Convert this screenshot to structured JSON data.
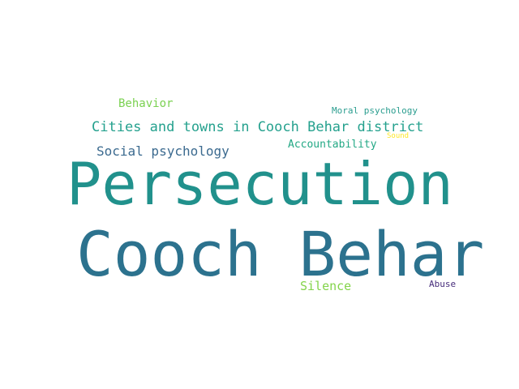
{
  "words": [
    {
      "id": "persecution",
      "text": "Persecution",
      "color": "#21918c"
    },
    {
      "id": "cooch_behar",
      "text": "Cooch Behar",
      "color": "#2c728e"
    },
    {
      "id": "cities",
      "text": "Cities and towns in Cooch Behar district",
      "color": "#25a18e"
    },
    {
      "id": "social",
      "text": "Social psychology",
      "color": "#3b6a8f"
    },
    {
      "id": "behavior",
      "text": "Behavior",
      "color": "#7ad151"
    },
    {
      "id": "moral",
      "text": "Moral psychology",
      "color": "#2a9d8f"
    },
    {
      "id": "accountability",
      "text": "Accountability",
      "color": "#22a884"
    },
    {
      "id": "sound",
      "text": "Sound",
      "color": "#fde725"
    },
    {
      "id": "silence",
      "text": "Silence",
      "color": "#84d44b"
    },
    {
      "id": "abuse",
      "text": "Abuse",
      "color": "#472d7b"
    }
  ]
}
